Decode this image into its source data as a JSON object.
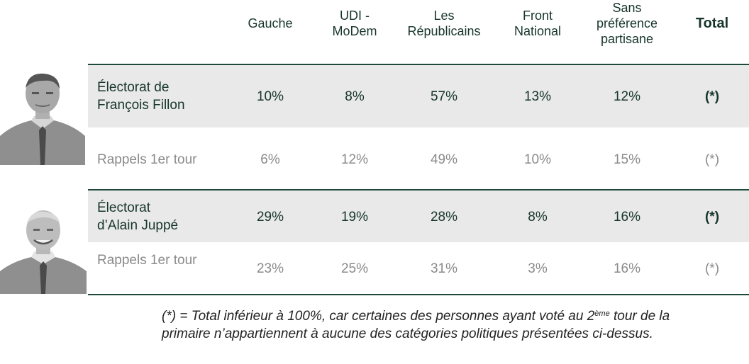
{
  "headers": [
    {
      "label": "Gauche"
    },
    {
      "label": "UDI -\nMoDem"
    },
    {
      "label": "Les\nRépublicains"
    },
    {
      "label": "Front\nNational"
    },
    {
      "label": "Sans\npréférence\npartisane"
    },
    {
      "label": "Total"
    }
  ],
  "rows": [
    {
      "label": "Électorat de\nFrançois Fillon",
      "cells": [
        "10%",
        "8%",
        "57%",
        "13%",
        "12%",
        "(*)"
      ]
    },
    {
      "label": "Rappels 1er tour",
      "cells": [
        "6%",
        "12%",
        "49%",
        "10%",
        "15%",
        "(*)"
      ]
    },
    {
      "label": "Électorat\nd’Alain Juppé",
      "cells": [
        "29%",
        "19%",
        "28%",
        "8%",
        "16%",
        "(*)"
      ]
    },
    {
      "label": "Rappels 1er tour",
      "cells": [
        "23%",
        "25%",
        "31%",
        "3%",
        "16%",
        "(*)"
      ]
    }
  ],
  "footnote": {
    "part1": "(*) = Total inférieur à 100%, car certaines des personnes ayant voté au 2",
    "sup": "ème",
    "part2": " tour de la primaire n’appartiennent à aucune des catégories politiques présentées ci-dessus."
  },
  "colors": {
    "accent": "#1f4a3a",
    "band": "#e8e9e8",
    "secondary_text": "#8a8a8a"
  },
  "icons": [
    "person-photo-fillon",
    "person-photo-juppe"
  ]
}
